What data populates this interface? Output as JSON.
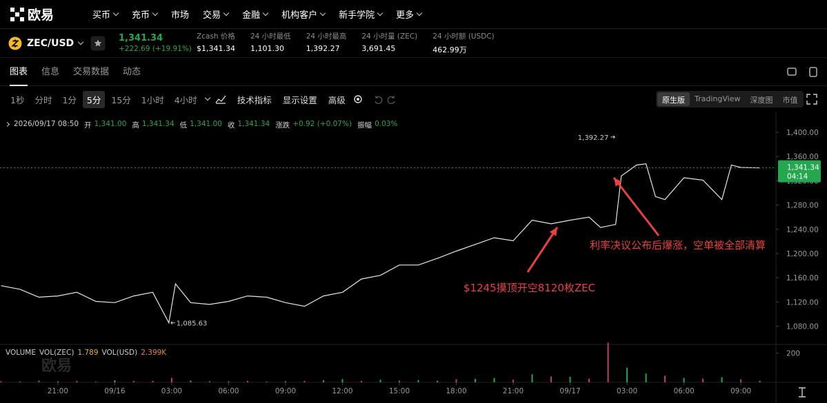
{
  "nav": {
    "logo": "欧易",
    "items": [
      {
        "label": "买币",
        "menu": true
      },
      {
        "label": "充币",
        "menu": true
      },
      {
        "label": "市场",
        "menu": false
      },
      {
        "label": "交易",
        "menu": true
      },
      {
        "label": "金融",
        "menu": true
      },
      {
        "label": "机构客户",
        "menu": true
      },
      {
        "label": "新手学院",
        "menu": true
      },
      {
        "label": "更多",
        "menu": true
      }
    ]
  },
  "ticker": {
    "symbol": "ZEC/USD",
    "price": "1,341.34",
    "change": "+222.69 (+19.91%)",
    "stats": [
      {
        "label": "Zcash 价格",
        "value": "$1,341.34"
      },
      {
        "label": "24 小时最低",
        "value": "1,101.30"
      },
      {
        "label": "24 小时最高",
        "value": "1,392.27"
      },
      {
        "label": "24 小时量 (ZEC)",
        "value": "3,691.45"
      },
      {
        "label": "24 小时额 (USDC)",
        "value": "462.99万"
      }
    ]
  },
  "tabs": [
    "图表",
    "信息",
    "交易数据",
    "动态"
  ],
  "active_tab": 0,
  "toolbar": {
    "intervals": [
      "1秒",
      "分时",
      "1分",
      "5分",
      "15分",
      "1小时",
      "4小时"
    ],
    "active": 3,
    "tools": [
      "技术指标",
      "显示设置",
      "高级"
    ],
    "views": [
      "原生版",
      "TradingView",
      "深度图",
      "市值"
    ],
    "active_view": 0
  },
  "ohlc": {
    "date": "2026/09/17 08:50",
    "fields": [
      {
        "label": "开",
        "value": "1,341.00"
      },
      {
        "label": "高",
        "value": "1,341.34"
      },
      {
        "label": "低",
        "value": "1,341.00"
      },
      {
        "label": "收",
        "value": "1,341.34"
      },
      {
        "label": "涨跌",
        "value": "+0.92 (+0.07%)"
      },
      {
        "label": "振幅",
        "value": "0.03%"
      }
    ]
  },
  "chart_data": [
    {
      "type": "line",
      "color": "#e6e6e6",
      "x": [
        -3,
        -2,
        -1,
        0,
        1,
        2,
        3,
        4,
        5,
        5.85,
        6.2,
        7,
        8,
        9,
        10,
        11,
        12,
        13,
        14,
        15,
        16,
        17,
        18,
        19,
        20,
        21,
        22,
        23,
        24,
        25,
        26,
        27,
        28,
        28.6,
        29.4,
        29.7,
        30.5,
        31,
        31.5,
        32,
        33,
        34,
        35,
        35.5,
        36,
        37
      ],
      "values": [
        1147,
        1141,
        1128,
        1130,
        1136,
        1121,
        1119,
        1130,
        1136,
        1085.63,
        1150,
        1119,
        1116,
        1121,
        1130,
        1128,
        1119,
        1113,
        1130,
        1136,
        1158,
        1164,
        1181,
        1181,
        1192,
        1204,
        1215,
        1226,
        1221,
        1255,
        1249,
        1255,
        1260,
        1243,
        1248,
        1328,
        1346,
        1348,
        1294,
        1289,
        1325,
        1321,
        1289,
        1346,
        1342,
        1341.34
      ],
      "xlim": [
        -3.05,
        37.85
      ],
      "ylim": [
        1050,
        1433
      ],
      "xticks": [
        {
          "value": 0,
          "label": "21:00"
        },
        {
          "value": 3,
          "label": "09/16"
        },
        {
          "value": 6,
          "label": "03:00"
        },
        {
          "value": 9,
          "label": "06:00"
        },
        {
          "value": 12,
          "label": "09:00"
        },
        {
          "value": 15,
          "label": "12:00"
        },
        {
          "value": 18,
          "label": "15:00"
        },
        {
          "value": 21,
          "label": "18:00"
        },
        {
          "value": 24,
          "label": "21:00"
        },
        {
          "value": 27,
          "label": "09/17"
        },
        {
          "value": 30,
          "label": "03:00"
        },
        {
          "value": 33,
          "label": "06:00"
        },
        {
          "value": 36,
          "label": "09:00"
        }
      ],
      "yticks": [
        {
          "value": 1080,
          "label": "1,080.00"
        },
        {
          "value": 1120,
          "label": "1,120.00"
        },
        {
          "value": 1160,
          "label": "1,160.00"
        },
        {
          "value": 1200,
          "label": "1,200.00"
        },
        {
          "value": 1240,
          "label": "1,240.00"
        },
        {
          "value": 1280,
          "label": "1,280.00"
        },
        {
          "value": 1320,
          "label": "1,320.00"
        },
        {
          "value": 1360,
          "label": "1,360.00"
        },
        {
          "value": 1400,
          "label": "1,400.00"
        }
      ],
      "last": {
        "value": 1341.34,
        "label": "1,341.34",
        "countdown": "04:14",
        "color": "#25a750"
      },
      "high": {
        "x": 29.9,
        "value": 1392.27,
        "label": "1,392.27"
      },
      "low": {
        "x": 5.85,
        "value": 1085.63,
        "label": "1,085.63"
      },
      "annotations": [
        "$1245摸顶开空8120枚ZEC",
        "利率决议公布后爆涨，空单被全部清算"
      ]
    },
    {
      "type": "bar",
      "title": "VOLUME",
      "legend": [
        {
          "label": "VOL(ZEC)",
          "value": "1.789",
          "color": "#e5b233"
        },
        {
          "label": "VOL(USD)",
          "value": "2.399K",
          "color": "#e8883a"
        }
      ],
      "x": [
        -3,
        -2,
        -1,
        0,
        1,
        2,
        3,
        4,
        5,
        6,
        7,
        8,
        9,
        10,
        11,
        12,
        13,
        14,
        15,
        16,
        17,
        18,
        19,
        20,
        21,
        22,
        23,
        24,
        25,
        26,
        27,
        28,
        29,
        30,
        31,
        32,
        33,
        34,
        35,
        36,
        37
      ],
      "values": [
        8,
        5,
        12,
        6,
        10,
        4,
        14,
        9,
        10,
        30,
        12,
        8,
        6,
        10,
        5,
        7,
        9,
        14,
        22,
        10,
        18,
        12,
        16,
        10,
        20,
        24,
        30,
        18,
        55,
        40,
        38,
        25,
        270,
        100,
        60,
        45,
        30,
        25,
        35,
        20,
        10
      ],
      "colors": [
        "#c43c5c",
        "#25a750",
        "#c43c5c",
        "#25a750",
        "#c43c5c",
        "#25a750",
        "#25a750",
        "#c43c5c",
        "#c43c5c",
        "#c43c5c",
        "#25a750",
        "#c43c5c",
        "#25a750",
        "#c43c5c",
        "#25a750",
        "#25a750",
        "#c43c5c",
        "#25a750",
        "#25a750",
        "#c43c5c",
        "#25a750",
        "#c43c5c",
        "#25a750",
        "#25a750",
        "#c43c5c",
        "#25a750",
        "#25a750",
        "#c43c5c",
        "#25a750",
        "#c43c5c",
        "#25a750",
        "#c43c5c",
        "#c43c5c",
        "#25a750",
        "#25a750",
        "#c43c5c",
        "#25a750",
        "#c43c5c",
        "#25a750",
        "#c43c5c",
        "#25a750"
      ],
      "ylim": [
        0,
        258
      ],
      "yticks": [
        200
      ]
    }
  ]
}
